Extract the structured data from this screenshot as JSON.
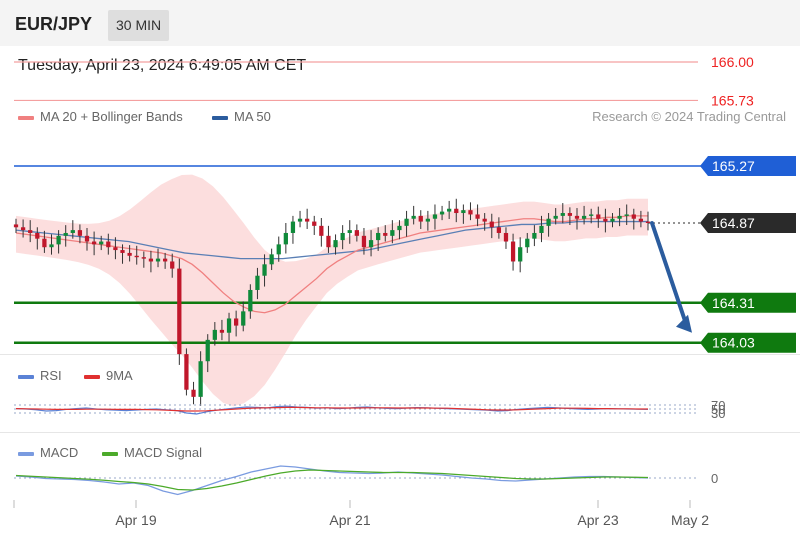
{
  "header": {
    "symbol": "EUR/JPY",
    "timeframe": "30 MIN"
  },
  "date_line": "Tuesday, April 23, 2024 6:49:05 AM CET",
  "legends": {
    "main": [
      {
        "label": "MA 20 + Bollinger Bands",
        "color": "#f08080"
      },
      {
        "label": "MA 50",
        "color": "#2b5c9e"
      }
    ],
    "rsi": [
      {
        "label": "RSI",
        "color": "#5b82d6"
      },
      {
        "label": "9MA",
        "color": "#e03030"
      }
    ],
    "macd": [
      {
        "label": "MACD",
        "color": "#7a9be0"
      },
      {
        "label": "MACD Signal",
        "color": "#4caa2a"
      }
    ]
  },
  "credit": "Research © 2024 Trading Central",
  "chart_data": [
    {
      "type": "candlestick",
      "panel": "price",
      "x_labels": [
        "Apr 19",
        "Apr 21",
        "Apr 23",
        "May 2"
      ],
      "levels": [
        {
          "value": 166.0,
          "label": "166.00",
          "color": "#ee2222",
          "style": "thin-line"
        },
        {
          "value": 165.73,
          "label": "165.73",
          "color": "#ee2222",
          "style": "thin-line"
        },
        {
          "value": 165.27,
          "label": "165.27",
          "color": "#1f5fd6",
          "style": "resistance-tag"
        },
        {
          "value": 164.87,
          "label": "164.87",
          "color": "#2a2a2a",
          "style": "last-price-tag"
        },
        {
          "value": 164.31,
          "label": "164.31",
          "color": "#0f7a0f",
          "style": "support-tag"
        },
        {
          "value": 164.03,
          "label": "164.03",
          "color": "#0f7a0f",
          "style": "support-tag"
        }
      ],
      "last_price": 164.87,
      "projection": {
        "from": 164.87,
        "to": 164.1,
        "direction": "down"
      },
      "close": [
        164.84,
        164.82,
        164.8,
        164.76,
        164.7,
        164.72,
        164.78,
        164.8,
        164.82,
        164.78,
        164.74,
        164.72,
        164.74,
        164.7,
        164.68,
        164.66,
        164.64,
        164.63,
        164.62,
        164.6,
        164.62,
        164.6,
        164.55,
        163.95,
        163.7,
        163.65,
        163.9,
        164.05,
        164.12,
        164.1,
        164.2,
        164.15,
        164.25,
        164.4,
        164.5,
        164.58,
        164.65,
        164.72,
        164.8,
        164.88,
        164.9,
        164.88,
        164.85,
        164.78,
        164.7,
        164.75,
        164.8,
        164.82,
        164.78,
        164.7,
        164.75,
        164.8,
        164.78,
        164.82,
        164.85,
        164.9,
        164.92,
        164.88,
        164.9,
        164.93,
        164.95,
        164.97,
        164.94,
        164.96,
        164.93,
        164.9,
        164.88,
        164.84,
        164.8,
        164.74,
        164.6,
        164.7,
        164.76,
        164.8,
        164.85,
        164.9,
        164.92,
        164.94,
        164.92,
        164.9,
        164.92,
        164.93,
        164.9,
        164.88,
        164.9,
        164.92,
        164.93,
        164.9,
        164.88,
        164.87
      ],
      "ma20": [
        164.8,
        164.79,
        164.78,
        164.77,
        164.76,
        164.75,
        164.74,
        164.73,
        164.72,
        164.71,
        164.7,
        164.69,
        164.68,
        164.67,
        164.66,
        164.64,
        164.62,
        164.58,
        164.52,
        164.45,
        164.38,
        164.32,
        164.28,
        164.25,
        164.24,
        164.26,
        164.3,
        164.36,
        164.42,
        164.48,
        164.55,
        164.6,
        164.64,
        164.68,
        164.7,
        164.72,
        164.74,
        164.76,
        164.78,
        164.8,
        164.81,
        164.82,
        164.83,
        164.84,
        164.85,
        164.86,
        164.87,
        164.88,
        164.89,
        164.9,
        164.9,
        164.89,
        164.88,
        164.88,
        164.89,
        164.9,
        164.9,
        164.91,
        164.91,
        164.92,
        164.92,
        164.92
      ],
      "ma50": [
        164.82,
        164.81,
        164.8,
        164.79,
        164.78,
        164.77,
        164.76,
        164.75,
        164.74,
        164.72,
        164.7,
        164.68,
        164.66,
        164.65,
        164.64,
        164.63,
        164.62,
        164.62,
        164.62,
        164.62,
        164.63,
        164.64,
        164.65,
        164.66,
        164.67,
        164.68,
        164.7,
        164.72,
        164.74,
        164.76,
        164.78,
        164.8,
        164.82,
        164.83,
        164.84,
        164.85,
        164.86,
        164.86,
        164.87,
        164.87,
        164.88,
        164.88,
        164.88,
        164.88,
        164.88,
        164.88
      ]
    },
    {
      "type": "line",
      "panel": "rsi",
      "reference_levels": [
        "70",
        "50",
        "30"
      ],
      "series": [
        {
          "name": "RSI",
          "color": "#5b82d6",
          "values": [
            52,
            50,
            46,
            40,
            42,
            48,
            52,
            55,
            50,
            46,
            44,
            42,
            45,
            48,
            50,
            46,
            42,
            30,
            25,
            36,
            44,
            50,
            56,
            60,
            58,
            55,
            62,
            64,
            60,
            58,
            54,
            56,
            52,
            54,
            58,
            60,
            56,
            53,
            52,
            55,
            57,
            56,
            54,
            52,
            50,
            48,
            46,
            44,
            40,
            42,
            48,
            52,
            55,
            58,
            56,
            53,
            50,
            48,
            50,
            52,
            51,
            50,
            49,
            48
          ]
        },
        {
          "name": "9MA",
          "color": "#e03030",
          "values": [
            52,
            51,
            50,
            49,
            48,
            48,
            48,
            49,
            49,
            49,
            48,
            48,
            48,
            47,
            46,
            44,
            42,
            40,
            40,
            41,
            44,
            47,
            50,
            53,
            55,
            56,
            57,
            58,
            58,
            57,
            56,
            56,
            55,
            55,
            55,
            56,
            56,
            56,
            55,
            55,
            55,
            55,
            54,
            54,
            52,
            50,
            48,
            46,
            45,
            45,
            46,
            48,
            50,
            52,
            54,
            54,
            54,
            53,
            52,
            52,
            51,
            51,
            50,
            50
          ]
        }
      ]
    },
    {
      "type": "line",
      "panel": "macd",
      "reference_levels": [
        "0"
      ],
      "series": [
        {
          "name": "MACD",
          "color": "#7a9be0",
          "values": [
            0.4,
            0.2,
            -0.1,
            -0.2,
            -0.3,
            -0.5,
            -0.8,
            -1.2,
            -1.0,
            -1.5,
            -2.6,
            -3.3,
            -2.5,
            -1.5,
            -0.5,
            0.3,
            1.2,
            1.8,
            2.4,
            2.2,
            1.8,
            1.4,
            1.1,
            1.0,
            0.9,
            1.0,
            1.2,
            1.0,
            0.8,
            0.6,
            0.3,
            0.0,
            -0.2,
            -0.5,
            -0.6,
            -0.4,
            -0.2,
            0.0,
            0.2,
            0.3,
            0.3,
            0.2,
            0.1,
            0.0
          ]
        },
        {
          "name": "MACD Signal",
          "color": "#4caa2a",
          "values": [
            0.5,
            0.35,
            0.2,
            0.05,
            -0.1,
            -0.25,
            -0.45,
            -0.7,
            -0.9,
            -1.2,
            -1.7,
            -2.3,
            -2.4,
            -2.1,
            -1.6,
            -1.0,
            -0.3,
            0.4,
            1.0,
            1.4,
            1.6,
            1.5,
            1.4,
            1.3,
            1.2,
            1.1,
            1.1,
            1.1,
            1.0,
            0.9,
            0.7,
            0.5,
            0.3,
            0.1,
            -0.1,
            -0.2,
            -0.2,
            -0.1,
            0.0,
            0.1,
            0.2,
            0.2,
            0.15,
            0.1
          ]
        }
      ]
    }
  ]
}
